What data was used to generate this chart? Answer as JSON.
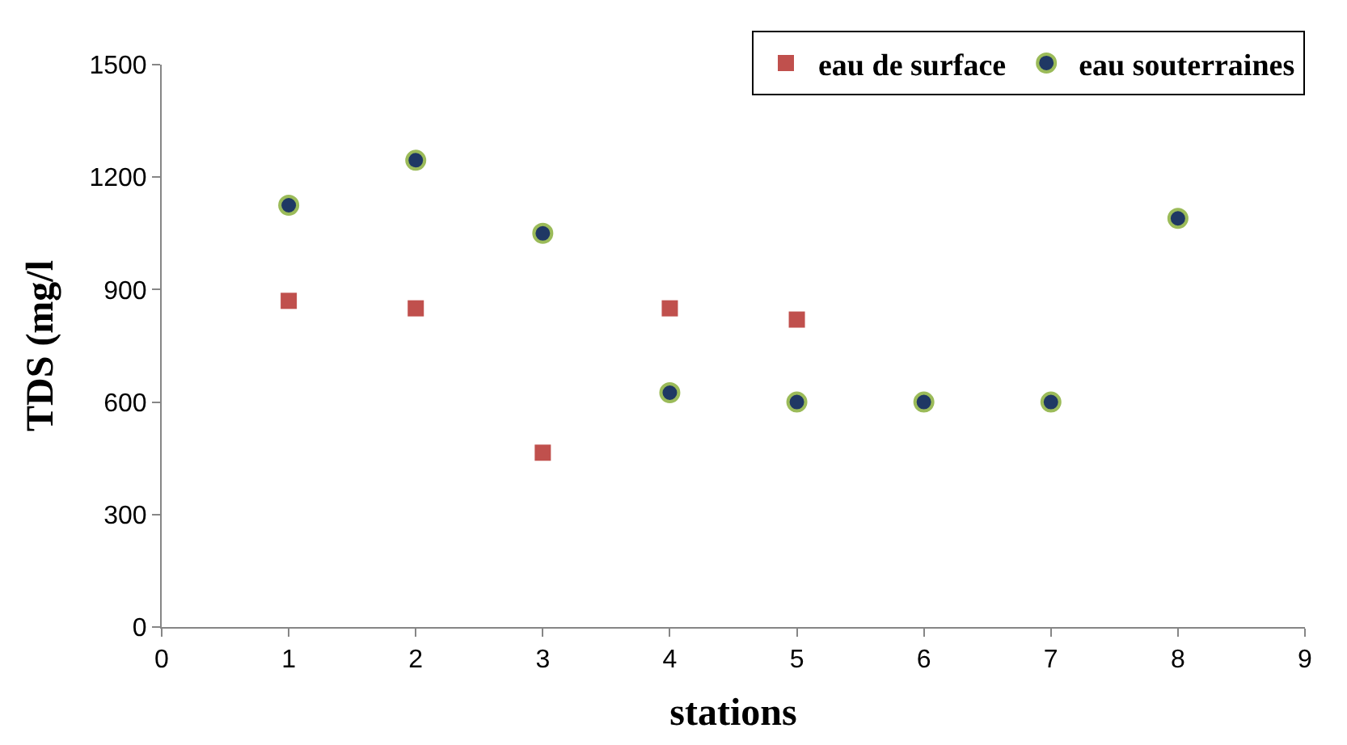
{
  "chart_data": {
    "type": "scatter",
    "xlabel": "stations",
    "ylabel": "TDS (mg/l",
    "xlim": [
      0,
      9
    ],
    "xticks": [
      0,
      1,
      2,
      3,
      4,
      5,
      6,
      7,
      8,
      9
    ],
    "ylim": [
      0,
      1500
    ],
    "yticks": [
      0,
      300,
      600,
      900,
      1200,
      1500
    ],
    "legend": "top right",
    "series": [
      {
        "name": "eau de surface",
        "color": "#c0504d",
        "marker": "square",
        "x": [
          1,
          2,
          3,
          4,
          5
        ],
        "values": [
          870,
          850,
          465,
          850,
          820
        ]
      },
      {
        "name": "eau souterraines",
        "color": "#1f3864",
        "marker": "circle",
        "x": [
          1,
          2,
          3,
          4,
          5,
          6,
          7,
          8
        ],
        "values": [
          1125,
          1245,
          1050,
          625,
          600,
          600,
          600,
          1090
        ]
      }
    ]
  }
}
